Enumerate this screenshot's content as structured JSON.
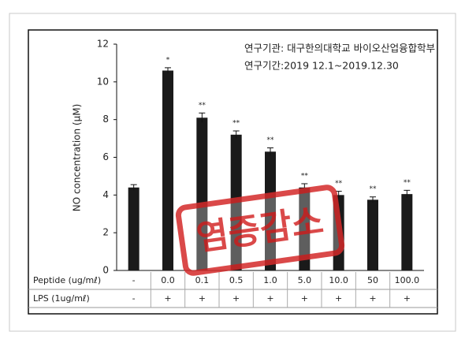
{
  "chart_data": {
    "type": "bar",
    "y_label": "NO concentration (μM)",
    "notes": [
      "연구기관: 대구한의대학교 바이오산업융합학부",
      "연구기간:2019 12.1~2019.12.30"
    ],
    "row_labels": [
      "Peptide (ug/mℓ)",
      "LPS (1ug/mℓ)"
    ],
    "categories": [
      "-",
      "0.0",
      "0.1",
      "0.5",
      "1.0",
      "5.0",
      "10.0",
      "50",
      "100.0"
    ],
    "lps": [
      "-",
      "+",
      "+",
      "+",
      "+",
      "+",
      "+",
      "+",
      "+"
    ],
    "values": [
      4.4,
      10.6,
      8.1,
      7.2,
      6.3,
      4.4,
      4.0,
      3.75,
      4.05
    ],
    "errors": [
      0.15,
      0.15,
      0.25,
      0.2,
      0.2,
      0.2,
      0.2,
      0.15,
      0.2
    ],
    "significance": [
      null,
      "*",
      "**",
      "**",
      "**",
      "**",
      "**",
      "**",
      "**"
    ],
    "color": "#1a1a1a",
    "ylim": [
      0,
      12
    ],
    "yticks": [
      0,
      2,
      4,
      6,
      8,
      10,
      12
    ],
    "stamp": "염증감소"
  }
}
